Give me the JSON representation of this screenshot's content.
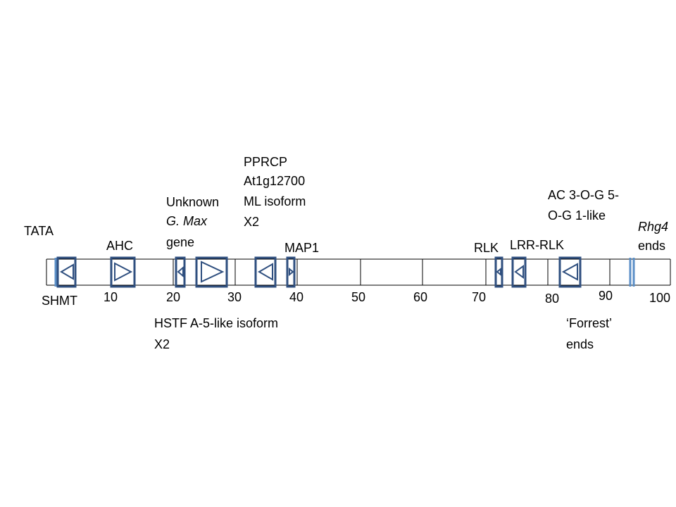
{
  "colors": {
    "gene_box": "#2f4f7f",
    "marker_line": "#5b8fc7",
    "track_line": "#000000",
    "background": "#ffffff"
  },
  "scale": {
    "ticks": [
      "10",
      "20",
      "30",
      "40",
      "50",
      "60",
      "70",
      "80",
      "90",
      "100"
    ]
  },
  "labels": {
    "tata": "TATA",
    "shmt": "SHMT",
    "ahc": "AHC",
    "unknown_line1": "Unknown",
    "unknown_line2": "G. Max",
    "unknown_line3": "gene",
    "pprcp_line1": "PPRCP",
    "pprcp_line2": "At1g12700",
    "pprcp_line3": "ML isoform",
    "pprcp_line4": "X2",
    "map1": "MAP1",
    "hstf_line1": "HSTF A-5-like isoform",
    "hstf_line2": "X2",
    "rlk": "RLK",
    "lrr_rlk": "LRR-RLK",
    "ac_line1": "AC 3-O-G 5-",
    "ac_line2": "O-G 1-like",
    "forrest_line1": "‘Forrest’",
    "forrest_line2": "ends",
    "rhg4_line1": "Rhg4",
    "rhg4_line2": "ends"
  },
  "genes": [
    {
      "name": "SHMT",
      "direction": "reverse"
    },
    {
      "name": "AHC",
      "direction": "forward"
    },
    {
      "name": "HSTF A-5-like isoform X2",
      "direction": "reverse"
    },
    {
      "name": "Unknown G. Max gene",
      "direction": "forward"
    },
    {
      "name": "PPRCP At1g12700 ML isoform X2",
      "direction": "reverse"
    },
    {
      "name": "MAP1",
      "direction": "forward"
    },
    {
      "name": "RLK",
      "direction": "reverse"
    },
    {
      "name": "LRR-RLK",
      "direction": "reverse"
    },
    {
      "name": "AC 3-O-G 5-O-G 1-like",
      "direction": "reverse"
    }
  ]
}
